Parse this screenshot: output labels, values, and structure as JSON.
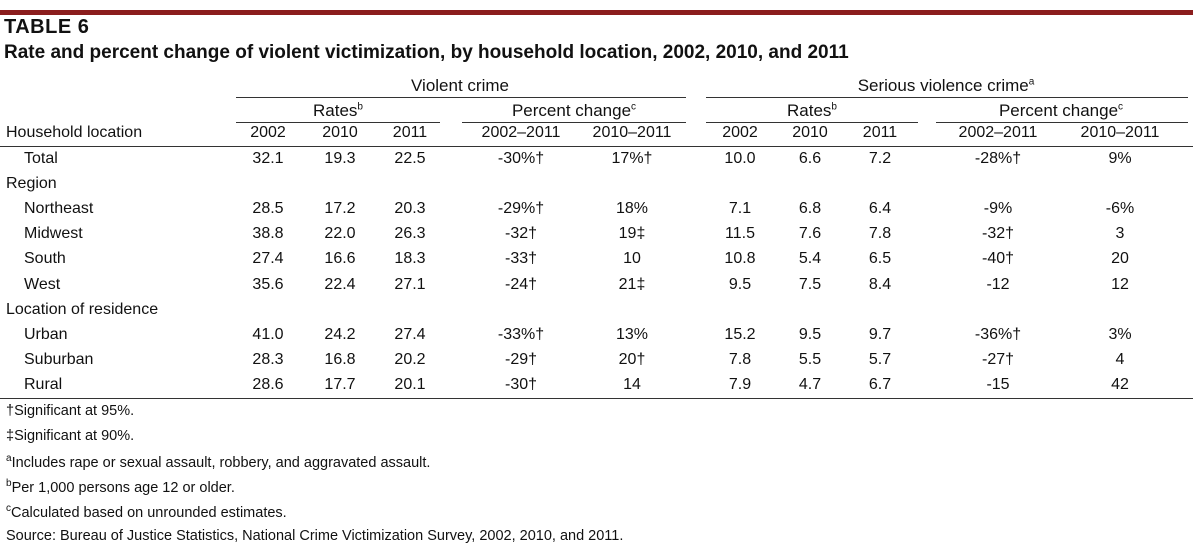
{
  "header": {
    "table_label": "TABLE 6",
    "title": "Rate and percent change of violent victimization, by household location, 2002, 2010, and 2011"
  },
  "groups": {
    "violent": "Violent crime",
    "serious": "Serious violence crime",
    "serious_sup": "a",
    "rates": "Rates",
    "rates_sup": "b",
    "pct": "Percent change",
    "pct_sup": "c"
  },
  "columns": {
    "location": "Household location",
    "y2002": "2002",
    "y2010": "2010",
    "y2011": "2011",
    "c0211": "2002–2011",
    "c1011": "2010–2011"
  },
  "rows": [
    {
      "label": "Total",
      "type": "data",
      "vals": [
        "32.1",
        "19.3",
        "22.5",
        "-30%†",
        "17%†",
        "10.0",
        "6.6",
        "7.2",
        "-28%†",
        "9%"
      ]
    },
    {
      "label": "Region",
      "type": "section"
    },
    {
      "label": "Northeast",
      "type": "data",
      "vals": [
        "28.5",
        "17.2",
        "20.3",
        "-29%†",
        "18%",
        "7.1",
        "6.8",
        "6.4",
        "-9%",
        "-6%"
      ]
    },
    {
      "label": "Midwest",
      "type": "data",
      "vals": [
        "38.8",
        "22.0",
        "26.3",
        "-32†",
        "19‡",
        "11.5",
        "7.6",
        "7.8",
        "-32†",
        "3"
      ]
    },
    {
      "label": "South",
      "type": "data",
      "vals": [
        "27.4",
        "16.6",
        "18.3",
        "-33†",
        "10",
        "10.8",
        "5.4",
        "6.5",
        "-40†",
        "20"
      ]
    },
    {
      "label": "West",
      "type": "data",
      "vals": [
        "35.6",
        "22.4",
        "27.1",
        "-24†",
        "21‡",
        "9.5",
        "7.5",
        "8.4",
        "-12",
        "12"
      ]
    },
    {
      "label": "Location of residence",
      "type": "section"
    },
    {
      "label": "Urban",
      "type": "data",
      "vals": [
        "41.0",
        "24.2",
        "27.4",
        "-33%†",
        "13%",
        "15.2",
        "9.5",
        "9.7",
        "-36%†",
        "3%"
      ]
    },
    {
      "label": "Suburban",
      "type": "data",
      "vals": [
        "28.3",
        "16.8",
        "20.2",
        "-29†",
        "20†",
        "7.8",
        "5.5",
        "5.7",
        "-27†",
        "4"
      ]
    },
    {
      "label": "Rural",
      "type": "data",
      "vals": [
        "28.6",
        "17.7",
        "20.1",
        "-30†",
        "14",
        "7.9",
        "4.7",
        "6.7",
        "-15",
        "42"
      ]
    }
  ],
  "footnotes": {
    "sig95": "†Significant at 95%.",
    "sig90": "‡Significant at 90%.",
    "a_mark": "a",
    "a_text": "Includes rape or sexual assault, robbery, and aggravated assault.",
    "b_mark": "b",
    "b_text": "Per 1,000 persons age 12 or older.",
    "c_mark": "c",
    "c_text": "Calculated based on unrounded estimates.",
    "source": "Source: Bureau of Justice Statistics, National Crime Victimization Survey, 2002, 2010, and 2011."
  }
}
